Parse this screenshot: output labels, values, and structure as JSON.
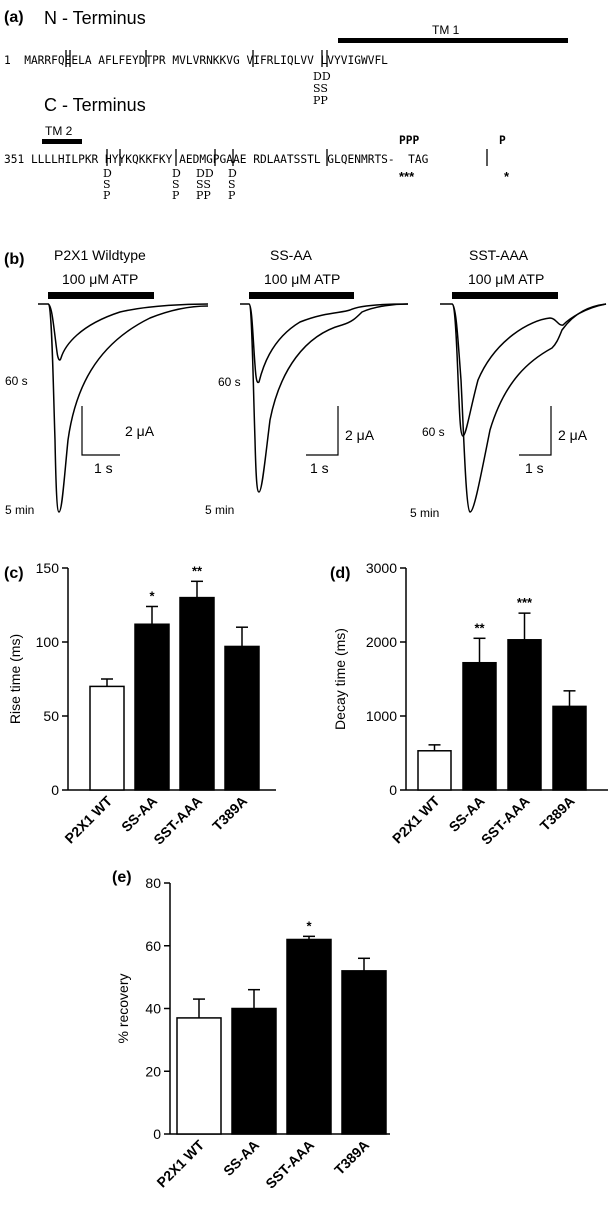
{
  "panel_a": {
    "label": "(a)",
    "n_title": "N - Terminus",
    "c_title": "C - Terminus",
    "tm1": "TM 1",
    "tm2": "TM 2",
    "n_line": "1  MARRFQEELA AFLFEYDTPR MVLVRNKKVG VIFRLIQLVV LVYVIGWVFL",
    "n_mod_d": "DD",
    "n_mod_s": "SS",
    "n_mod_p": "PP",
    "c_line": "351 LLLLHILPKR HYYKQKKFKY AEDMGPGAAE RDLAATSSTL GLQENMRTS-  TAG",
    "c_ppp": "PPP",
    "c_p": "P",
    "c_stars": "***",
    "c_star": "*",
    "c_mod1": [
      "D",
      "S",
      "P"
    ],
    "c_mod2": [
      "D",
      "S",
      "P"
    ],
    "c_mod3": [
      "DD",
      "SS",
      "PP"
    ],
    "c_mod4": [
      "D",
      "S",
      "P"
    ]
  },
  "panel_b": {
    "label": "(b)",
    "traces": [
      {
        "title": "P2X1 Wildtype",
        "agonist": "100 μM ATP",
        "t60": "60 s",
        "t5": "5 min",
        "scale_i": "2 μA",
        "scale_t": "1 s"
      },
      {
        "title": "SS-AA",
        "agonist": "100 μM ATP",
        "t60": "60 s",
        "t5": "5 min",
        "scale_i": "2 μA",
        "scale_t": "1 s"
      },
      {
        "title": "SST-AAA",
        "agonist": "100 μM ATP",
        "t60": "60 s",
        "t5": "5 min",
        "scale_i": "2 μA",
        "scale_t": "1 s"
      }
    ]
  },
  "chart_data": [
    {
      "panel": "(c)",
      "type": "bar",
      "categories": [
        "P2X1 WT",
        "SS-AA",
        "SST-AAA",
        "T389A"
      ],
      "values": [
        70,
        112,
        130,
        97
      ],
      "errors": [
        5,
        12,
        11,
        13
      ],
      "significance": [
        "",
        "*",
        "**",
        ""
      ],
      "fill": [
        "#ffffff",
        "#000000",
        "#000000",
        "#000000"
      ],
      "ylabel": "Rise time (ms)",
      "ylim": [
        0,
        150
      ],
      "yticks": [
        0,
        50,
        100,
        150
      ]
    },
    {
      "panel": "(d)",
      "type": "bar",
      "categories": [
        "P2X1 WT",
        "SS-AA",
        "SST-AAA",
        "T389A"
      ],
      "values": [
        530,
        1720,
        2030,
        1130
      ],
      "errors": [
        80,
        330,
        360,
        210
      ],
      "significance": [
        "",
        "**",
        "***",
        ""
      ],
      "fill": [
        "#ffffff",
        "#000000",
        "#000000",
        "#000000"
      ],
      "ylabel": "Decay time (ms)",
      "ylim": [
        0,
        3000
      ],
      "yticks": [
        0,
        1000,
        2000,
        3000
      ]
    },
    {
      "panel": "(e)",
      "type": "bar",
      "categories": [
        "P2X1 WT",
        "SS-AA",
        "SST-AAA",
        "T389A"
      ],
      "values": [
        37,
        40,
        62,
        52
      ],
      "errors": [
        6,
        6,
        1,
        4
      ],
      "significance": [
        "",
        "",
        "*",
        ""
      ],
      "fill": [
        "#ffffff",
        "#000000",
        "#000000",
        "#000000"
      ],
      "ylabel": "% recovery",
      "ylim": [
        0,
        80
      ],
      "yticks": [
        0,
        20,
        40,
        60,
        80
      ]
    }
  ]
}
